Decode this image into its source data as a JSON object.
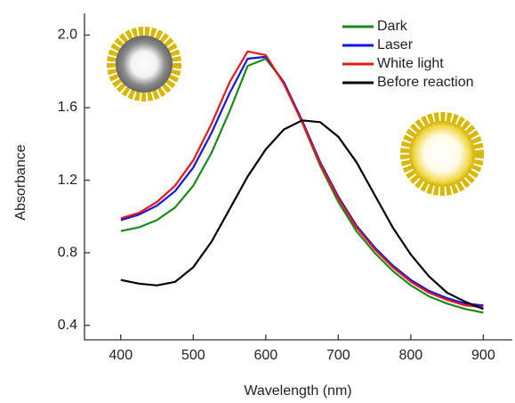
{
  "chart_data": {
    "type": "line",
    "x_label": "Wavelength (nm)",
    "y_label": "Absorbance",
    "x": [
      400,
      425,
      450,
      475,
      500,
      525,
      550,
      575,
      600,
      625,
      650,
      675,
      700,
      725,
      750,
      775,
      800,
      825,
      850,
      875,
      900
    ],
    "series": [
      {
        "name": "Dark",
        "color": "#1a8a1a",
        "values": [
          0.92,
          0.94,
          0.98,
          1.05,
          1.17,
          1.35,
          1.58,
          1.83,
          1.87,
          1.74,
          1.52,
          1.28,
          1.08,
          0.92,
          0.8,
          0.7,
          0.62,
          0.56,
          0.52,
          0.49,
          0.47
        ]
      },
      {
        "name": "Laser",
        "color": "#1515e0",
        "values": [
          0.98,
          1.01,
          1.06,
          1.14,
          1.27,
          1.46,
          1.68,
          1.87,
          1.88,
          1.74,
          1.53,
          1.3,
          1.11,
          0.95,
          0.83,
          0.73,
          0.65,
          0.59,
          0.55,
          0.52,
          0.51
        ]
      },
      {
        "name": "White light",
        "color": "#e81818",
        "values": [
          0.99,
          1.02,
          1.08,
          1.17,
          1.31,
          1.51,
          1.74,
          1.91,
          1.89,
          1.73,
          1.52,
          1.29,
          1.1,
          0.94,
          0.82,
          0.72,
          0.64,
          0.58,
          0.54,
          0.51,
          0.5
        ]
      },
      {
        "name": "Before reaction",
        "color": "#000000",
        "values": [
          0.65,
          0.63,
          0.62,
          0.64,
          0.72,
          0.86,
          1.04,
          1.22,
          1.37,
          1.48,
          1.53,
          1.52,
          1.44,
          1.3,
          1.12,
          0.94,
          0.79,
          0.67,
          0.58,
          0.53,
          0.49
        ]
      }
    ],
    "xlim": [
      350,
      940
    ],
    "ylim": [
      0.32,
      2.12
    ],
    "xticks": [
      400,
      500,
      600,
      700,
      800,
      900
    ],
    "yticks": [
      {
        "value": 0.4,
        "label": "0.4"
      },
      {
        "value": 0.8,
        "label": "0.8"
      },
      {
        "value": 1.2,
        "label": "1.2"
      },
      {
        "value": 1.6,
        "label": "1.6"
      },
      {
        "value": 2.0,
        "label": "2.0"
      }
    ],
    "legend": "upper right"
  }
}
